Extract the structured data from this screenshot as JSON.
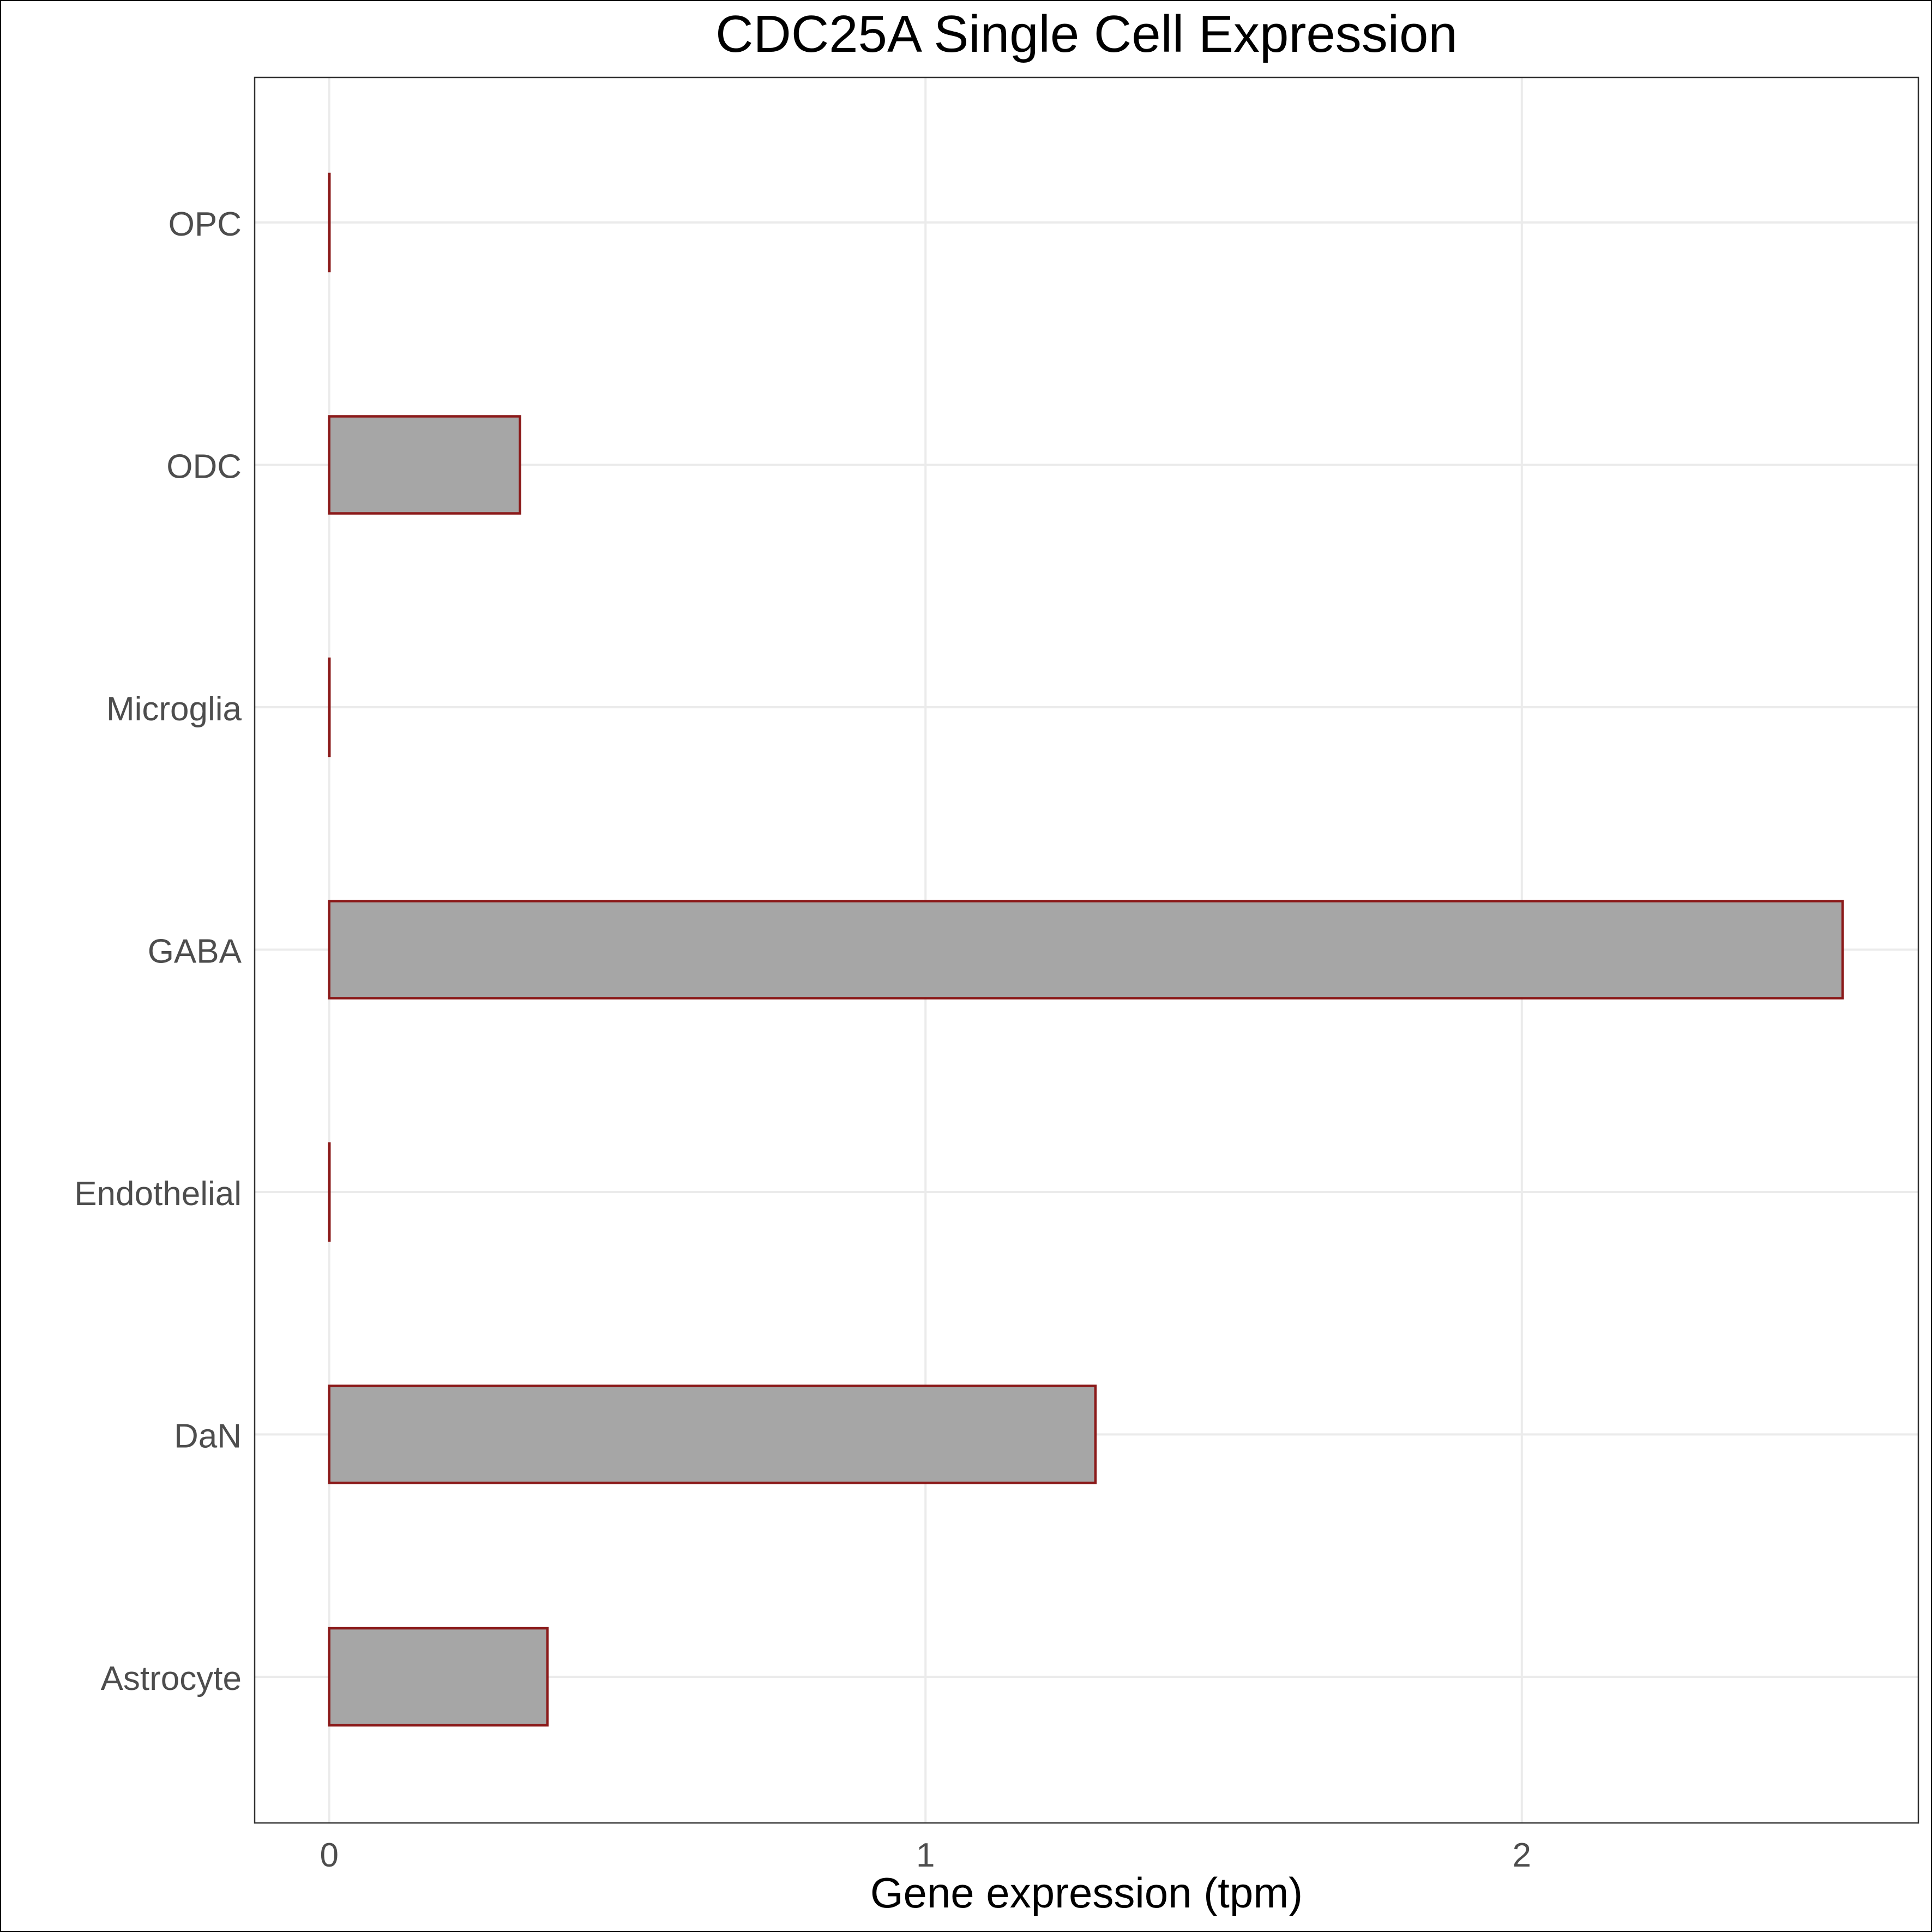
{
  "chart_data": {
    "type": "bar",
    "orientation": "horizontal",
    "title": "CDC25A Single Cell Expression",
    "xlabel": "Gene expression (tpm)",
    "ylabel": "",
    "categories": [
      "Astrocyte",
      "DaN",
      "Endothelial",
      "GABA",
      "Microglia",
      "ODC",
      "OPC"
    ],
    "values": [
      0.366,
      1.285,
      0.0,
      2.538,
      0.0,
      0.32,
      0.0
    ],
    "xlim": [
      -0.125,
      2.665
    ],
    "xticks": [
      0,
      1,
      2
    ],
    "xtick_labels": [
      "0",
      "1",
      "2"
    ],
    "grid": true,
    "legend": "none",
    "colors": {
      "bar_fill": "#a6a6a6",
      "bar_stroke": "#8b1a1a",
      "grid": "#ebebeb",
      "panel_border": "#333333",
      "tick_label": "#4d4d4d",
      "title": "#000000"
    }
  }
}
